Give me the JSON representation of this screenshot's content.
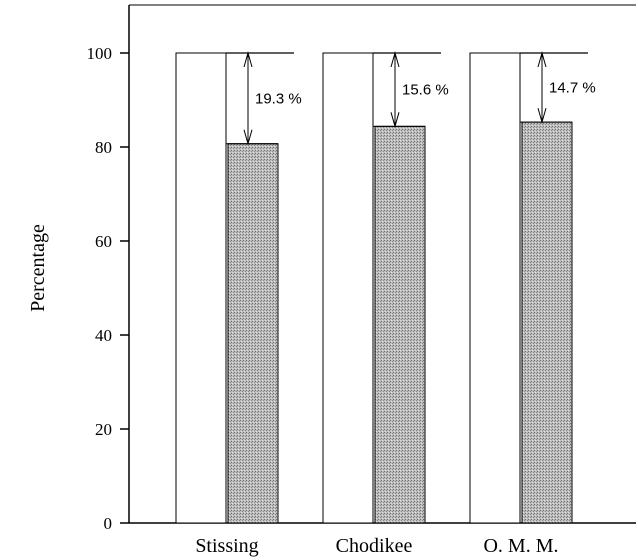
{
  "chart_data": {
    "type": "bar",
    "title": "",
    "xlabel": "",
    "ylabel": "Percentage",
    "ylim": [
      0,
      110
    ],
    "yticks": [
      0,
      20,
      40,
      60,
      80,
      100
    ],
    "grid": false,
    "categories": [
      "Stissing",
      "Chodikee",
      "O. M. M."
    ],
    "series": [
      {
        "values": [
          100,
          100,
          100
        ],
        "fill": "#ffffff"
      },
      {
        "values": [
          80.7,
          84.4,
          85.3
        ],
        "fill": "#b3b3b3"
      }
    ],
    "annotations": [
      {
        "category": "Stissing",
        "from": 100,
        "to": 80.7,
        "label": "19.3 %"
      },
      {
        "category": "Chodikee",
        "from": 100,
        "to": 84.4,
        "label": "15.6 %"
      },
      {
        "category": "O. M. M.",
        "from": 100,
        "to": 85.3,
        "label": "14.7 %"
      }
    ]
  }
}
